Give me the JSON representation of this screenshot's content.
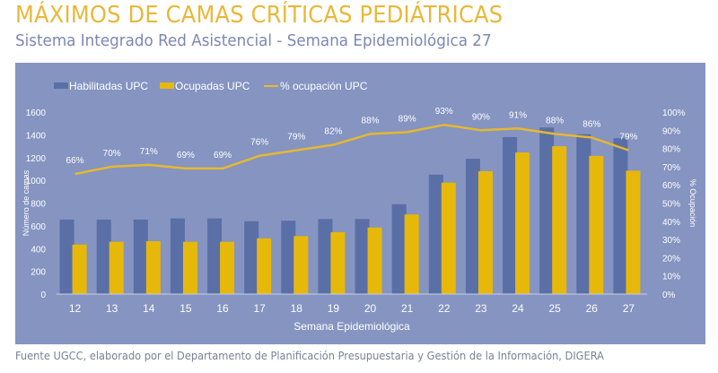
{
  "header": {
    "title": "MÁXIMOS DE CAMAS CRÍTICAS PEDIÁTRICAS",
    "subtitle": "Sistema Integrado Red Asistencial - Semana Epidemiológica 27"
  },
  "footer": {
    "source": "Fuente UGCC, elaborado por el Departamento de Planificación Presupuestaria y Gestión de la Información, DIGERA"
  },
  "colors": {
    "panel": "#8594c1",
    "habilitadas": "#5a6fa6",
    "ocupadas": "#e6b80a",
    "line": "#e6b830",
    "title": "#e8b83a",
    "subtitle": "#7d87b3"
  },
  "chart_data": {
    "type": "bar",
    "title": "MÁXIMOS DE CAMAS CRÍTICAS PEDIÁTRICAS",
    "xlabel": "Semana Epidemiológica",
    "ylabel": "Número de camas",
    "y2label": "% Ocupación",
    "ylim": [
      0,
      1600
    ],
    "yticks": [
      "0",
      "200",
      "400",
      "600",
      "800",
      "1000",
      "1200",
      "1400",
      "1600"
    ],
    "y2lim": [
      0,
      100
    ],
    "y2ticks": [
      "0%",
      "10%",
      "20%",
      "30%",
      "40%",
      "50%",
      "60%",
      "70%",
      "80%",
      "90%",
      "100%"
    ],
    "legend_position": "top-left",
    "grid": false,
    "categories": [
      "12",
      "13",
      "14",
      "15",
      "16",
      "17",
      "18",
      "19",
      "20",
      "21",
      "22",
      "23",
      "24",
      "25",
      "26",
      "27"
    ],
    "series": [
      {
        "name": "Habilitadas UPC",
        "type": "bar",
        "axis": "left",
        "values": [
          655,
          655,
          655,
          665,
          665,
          640,
          645,
          660,
          660,
          790,
          1050,
          1190,
          1380,
          1465,
          1405,
          1370
        ]
      },
      {
        "name": "Ocupadas UPC",
        "type": "bar",
        "axis": "left",
        "values": [
          435,
          460,
          465,
          460,
          460,
          490,
          510,
          545,
          585,
          700,
          980,
          1080,
          1245,
          1300,
          1215,
          1085
        ]
      },
      {
        "name": "% ocupación UPC",
        "type": "line",
        "axis": "right",
        "values": [
          66,
          70,
          71,
          69,
          69,
          76,
          79,
          82,
          88,
          89,
          93,
          90,
          91,
          88,
          86,
          79
        ],
        "labels": [
          "66%",
          "70%",
          "71%",
          "69%",
          "69%",
          "76%",
          "79%",
          "82%",
          "88%",
          "89%",
          "93%",
          "90%",
          "91%",
          "88%",
          "86%",
          "79%"
        ]
      }
    ]
  }
}
